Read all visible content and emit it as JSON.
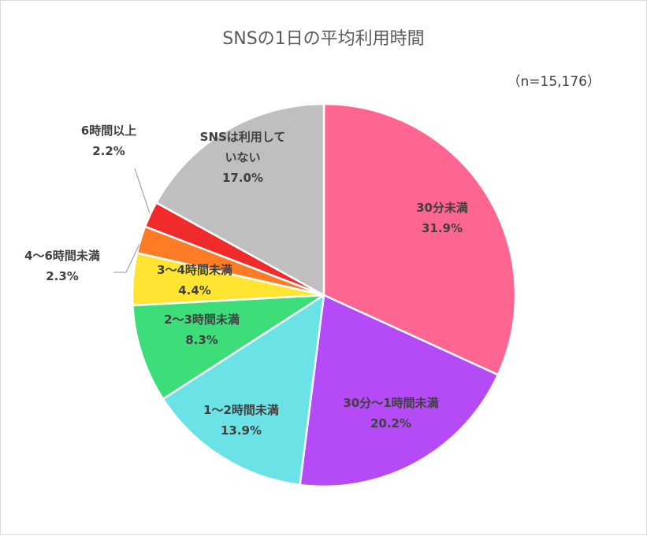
{
  "chart_data": {
    "type": "pie",
    "title": "SNSの1日の平均利用時間",
    "note": "（n=15,176）",
    "start_angle_deg": 0,
    "direction": "clockwise",
    "slices": [
      {
        "label_lines": [
          "30分未満"
        ],
        "value": 31.9,
        "value_text": "31.9%",
        "color": "#ff6591"
      },
      {
        "label_lines": [
          "30分～1時間未満"
        ],
        "value": 20.2,
        "value_text": "20.2%",
        "color": "#b54bf7"
      },
      {
        "label_lines": [
          "1～2時間未満"
        ],
        "value": 13.9,
        "value_text": "13.9%",
        "color": "#6be3e6"
      },
      {
        "label_lines": [
          "2～3時間未満"
        ],
        "value": 8.3,
        "value_text": "8.3%",
        "color": "#3ddd7a"
      },
      {
        "label_lines": [
          "3～4時間未満"
        ],
        "value": 4.4,
        "value_text": "4.4%",
        "color": "#ffe531"
      },
      {
        "label_lines": [
          "4～6時間未満"
        ],
        "value": 2.3,
        "value_text": "2.3%",
        "color": "#fd7c25"
      },
      {
        "label_lines": [
          "6時間以上"
        ],
        "value": 2.2,
        "value_text": "2.2%",
        "color": "#ef2b2b"
      },
      {
        "label_lines": [
          "SNSは利用して",
          "いない"
        ],
        "value": 17.0,
        "value_text": "17.0%",
        "color": "#bfbfbf"
      }
    ]
  }
}
